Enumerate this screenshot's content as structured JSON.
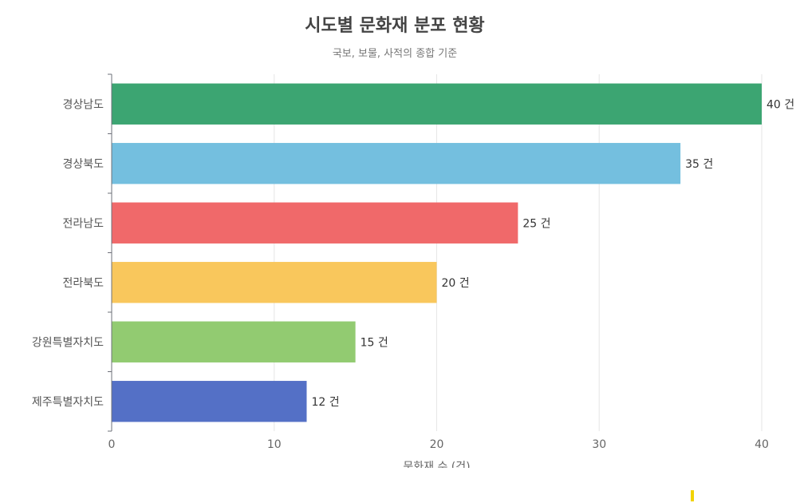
{
  "title": "시도별 문화재 분포 현황",
  "subtitle": "국보, 보물, 사적의 종합 기준",
  "chart_data": {
    "type": "bar",
    "orientation": "horizontal",
    "title": "시도별 문화재 분포 현황",
    "subtitle": "국보, 보물, 사적의 종합 기준",
    "xlabel": "문화재 수 (건)",
    "ylabel": "",
    "categories": [
      "경상남도",
      "경상북도",
      "전라남도",
      "전라북도",
      "강원특별자치도",
      "제주특별자치도"
    ],
    "values": [
      40,
      35,
      25,
      20,
      15,
      12
    ],
    "value_suffix": " 건",
    "colors": [
      "#3ca572",
      "#74bfdf",
      "#f0696a",
      "#f9c75c",
      "#92cb71",
      "#5470c6"
    ],
    "xlim": [
      0,
      40
    ],
    "xticks": [
      0,
      10,
      20,
      30,
      40
    ],
    "grid": true,
    "legend": "none"
  }
}
